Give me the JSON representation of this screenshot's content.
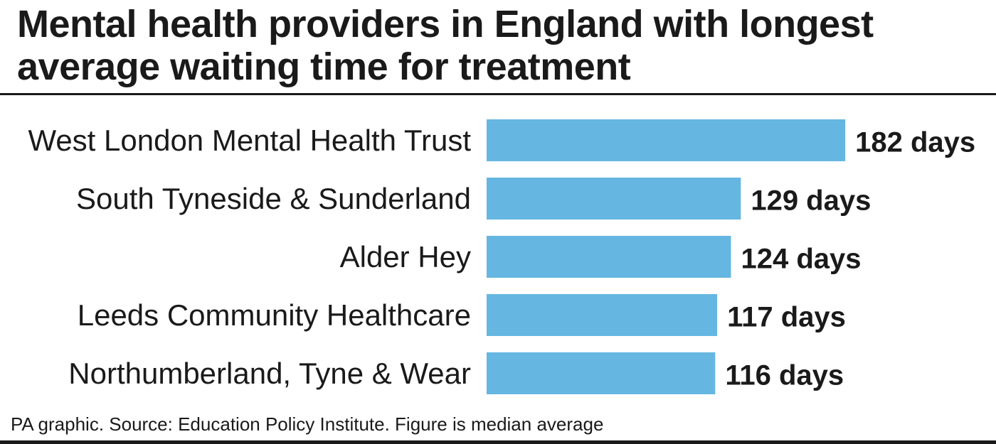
{
  "header": {
    "title": "Mental health providers in England with longest average waiting time for treatment"
  },
  "footer": {
    "source": "PA graphic. Source: Education Policy Institute. Figure is median average"
  },
  "colors": {
    "bar": "#65b7e1",
    "text": "#1a1a1a"
  },
  "chart_data": {
    "type": "bar",
    "orientation": "horizontal",
    "categories": [
      "West London Mental Health Trust",
      "South Tyneside & Sunderland",
      "Alder Hey",
      "Leeds Community Healthcare",
      "Northumberland, Tyne & Wear"
    ],
    "values": [
      182,
      129,
      124,
      117,
      116
    ],
    "value_labels": [
      "182 days",
      "129 days",
      "124 days",
      "117 days",
      "116 days"
    ],
    "unit": "days",
    "grid": false,
    "legend": "none"
  }
}
